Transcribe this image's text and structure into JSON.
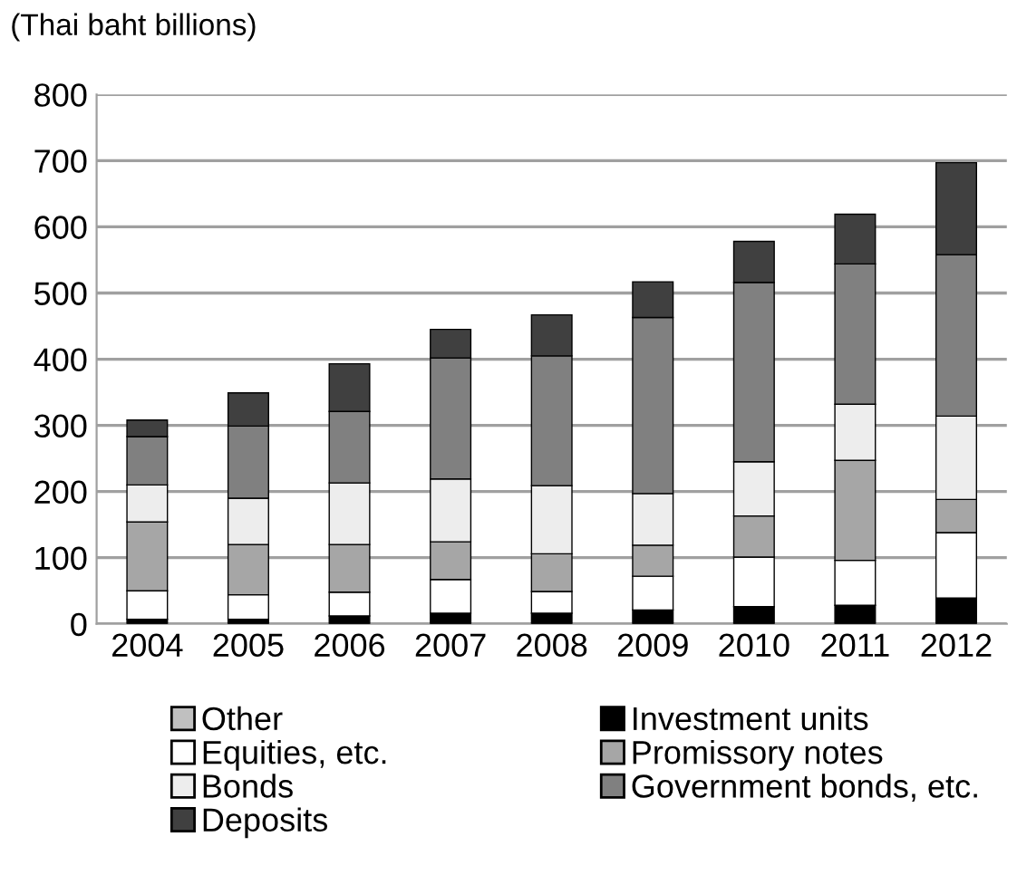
{
  "chart_data": {
    "type": "bar",
    "stacked": true,
    "ylabel": "(Thai baht billions)",
    "categories": [
      "2004",
      "2005",
      "2006",
      "2007",
      "2008",
      "2009",
      "2010",
      "2011",
      "2012"
    ],
    "series": [
      {
        "name": "Investment units",
        "color": "#000000",
        "values": [
          7,
          7,
          12,
          16,
          16,
          21,
          26,
          28,
          39
        ]
      },
      {
        "name": "Equities, etc.",
        "color": "#ffffff",
        "values": [
          43,
          37,
          36,
          51,
          33,
          51,
          75,
          68,
          99
        ]
      },
      {
        "name": "Promissory notes",
        "color": "#a6a6a6",
        "values": [
          104,
          76,
          72,
          57,
          57,
          47,
          62,
          151,
          50
        ]
      },
      {
        "name": "Bonds",
        "color": "#ededed",
        "values": [
          56,
          70,
          93,
          95,
          103,
          78,
          82,
          85,
          126
        ]
      },
      {
        "name": "Government bonds, etc.",
        "color": "#808080",
        "values": [
          73,
          109,
          108,
          183,
          196,
          266,
          271,
          212,
          244
        ]
      },
      {
        "name": "Deposits",
        "color": "#404040",
        "values": [
          25,
          50,
          72,
          43,
          62,
          54,
          62,
          75,
          139
        ]
      },
      {
        "name": "Other",
        "color": "#c0c0c0",
        "values": [
          0,
          0,
          0,
          0,
          0,
          0,
          0,
          0,
          0
        ]
      }
    ],
    "ylim": [
      0,
      800
    ],
    "yticks": [
      0,
      100,
      200,
      300,
      400,
      500,
      600,
      700,
      800
    ],
    "grid": "y",
    "legend": "bottom"
  }
}
